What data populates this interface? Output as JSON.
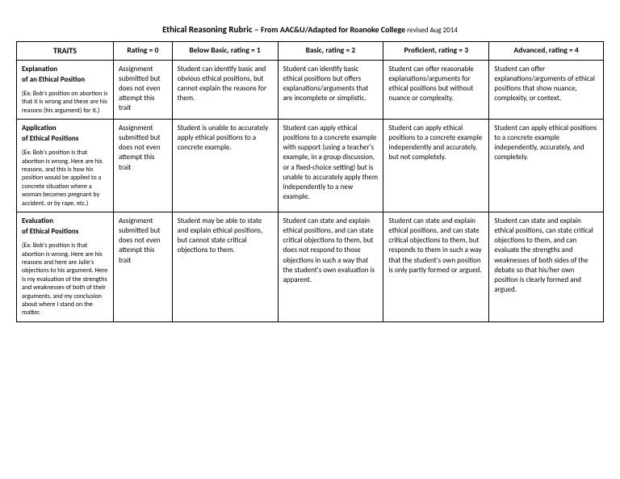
{
  "title": {
    "main": "Ethical Reasoning Rubric – ",
    "sub": "From AAC&U/Adapted for Roanoke College",
    "rev": "  revised Aug 2014"
  },
  "headers": {
    "traits": "TRAITS",
    "r0": "Rating = 0",
    "r1": "Below Basic, rating = 1",
    "r2": "Basic, rating = 2",
    "r3": "Proficient, rating = 3",
    "r4": "Advanced, rating = 4"
  },
  "rows": [
    {
      "trait_title1": "Explanation",
      "trait_title2": "of an Ethical Position",
      "trait_ex": "(Ex: Bob's position on abortion is that it is wrong and these are his reasons (his argument) for it.)",
      "r0": "Assignment submitted but does not even attempt this trait",
      "r1": "Student can identify basic and obvious ethical positions, but cannot explain the reasons for them.",
      "r2": "Student can identify basic ethical positions but offers explanations/arguments that are incomplete or simplistic.",
      "r3": "Student can offer reasonable explanations/arguments for ethical positions but without nuance or complexity.",
      "r4": "Student can offer explanations/arguments of ethical positions that show nuance, complexity, or context."
    },
    {
      "trait_title1": "Application",
      "trait_title2": "of Ethical Positions",
      "trait_ex": "(Ex: Bob's position is that abortion is wrong.  Here are his reasons, and this is how his position would be applied to a concrete situation where a woman becomes pregnant by accident, or by rape, etc.)",
      "r0": "Assignment submitted but does not even attempt this trait",
      "r1": "Student is unable to accurately apply ethical positions to a concrete example.",
      "r2": "Student can apply ethical positions to a concrete example with support (using a teacher's example, in a group discussion, or a fixed-choice setting) but is unable to accurately apply them independently to a new example.",
      "r3": "Student can apply ethical positions to a concrete example independently and accurately, but not completely.",
      "r4": "Student can apply ethical positions to a concrete example independently, accurately, and completely."
    },
    {
      "trait_title1": "Evaluation",
      "trait_title2": "of Ethical Positions",
      "trait_ex": "(Ex: Bob's position is that abortion is wrong.  Here are his reasons and here are Julie's objections to his argument.  Here is my evaluation of the strengths and weaknesses of both of their arguments, and my conclusion about where I stand on the matter.",
      "r0": "Assignment submitted but does not even attempt this trait",
      "r1": "Student may be able to state and explain ethical positions, but cannot state critical objections to them.",
      "r2": "Student can state and explain ethical positions, and can state critical objections to them, but does not respond to those objections in such a way that the student's own evaluation is apparent.",
      "r3": "Student can state and explain ethical positions, and can state critical objections to them, but responds to them in such a way that the student's own position is only partly formed or argued.",
      "r4": "Student can state and explain ethical positions, can state critical objections to them, and can evaluate the strengths and weaknesses of both sides of the debate so that his/her own position is clearly formed and argued."
    }
  ]
}
